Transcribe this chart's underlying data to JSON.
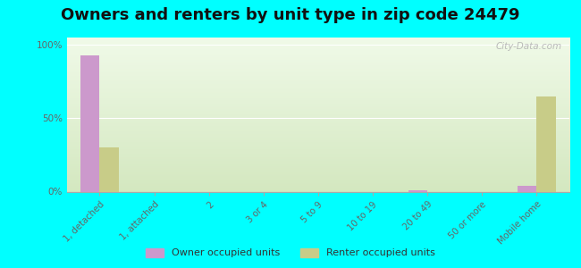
{
  "title": "Owners and renters by unit type in zip code 24479",
  "categories": [
    "1, detached",
    "1, attached",
    "2",
    "3 or 4",
    "5 to 9",
    "10 to 19",
    "20 to 49",
    "50 or more",
    "Mobile home"
  ],
  "owner_values": [
    93,
    0,
    0,
    0,
    0,
    0,
    1,
    0,
    4
  ],
  "renter_values": [
    30,
    0,
    0,
    0,
    0,
    0,
    0,
    0,
    65
  ],
  "owner_color": "#cc99cc",
  "renter_color": "#c8cc88",
  "background_color": "#00ffff",
  "ylabel_ticks": [
    "0%",
    "50%",
    "100%"
  ],
  "ytick_values": [
    0,
    50,
    100
  ],
  "ylim": [
    0,
    105
  ],
  "title_fontsize": 13,
  "watermark": "City-Data.com",
  "legend_owner": "Owner occupied units",
  "legend_renter": "Renter occupied units",
  "bar_width": 0.35,
  "grad_top_color": "#d4e8c0",
  "grad_bottom_color": "#f0fae8"
}
